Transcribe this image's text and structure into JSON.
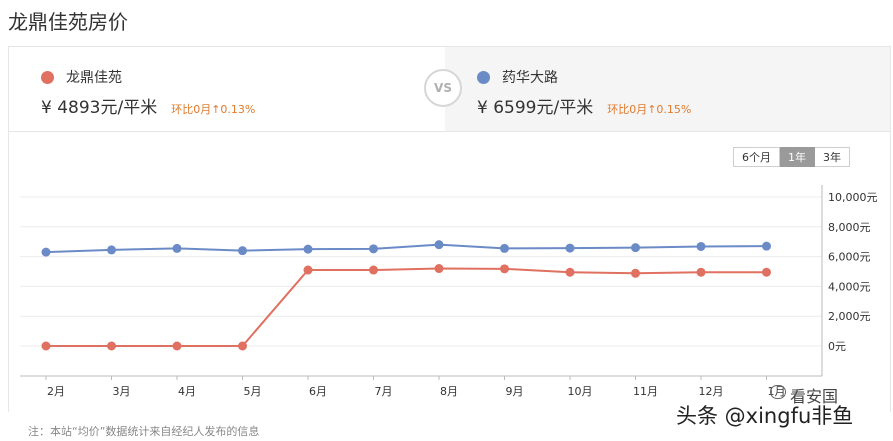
{
  "page_title": "龙鼎佳苑房价",
  "compare": {
    "left": {
      "name": "龙鼎佳苑",
      "price": "¥ 4893元/平米",
      "change": "环比0月↑0.13%",
      "color": "#e07060"
    },
    "vs": "VS",
    "right": {
      "name": "药华大路",
      "price": "¥ 6599元/平米",
      "change": "环比0月↑0.15%",
      "color": "#6b8bc7"
    }
  },
  "range_tabs": [
    {
      "label": "6个月",
      "active": false
    },
    {
      "label": "1年",
      "active": true
    },
    {
      "label": "3年",
      "active": false
    }
  ],
  "chart_data": {
    "type": "line",
    "categories": [
      "2月",
      "3月",
      "4月",
      "5月",
      "6月",
      "7月",
      "8月",
      "9月",
      "10月",
      "11月",
      "12月",
      "1月"
    ],
    "yticks": [
      "0元",
      "2,000元",
      "4,000元",
      "6,000元",
      "8,000元",
      "10,000元"
    ],
    "ylim": [
      0,
      10000
    ],
    "grid": true,
    "series": [
      {
        "name": "龙鼎佳苑",
        "color": "#e07060",
        "values": [
          0,
          0,
          0,
          0,
          5100,
          5100,
          5200,
          5180,
          4950,
          4880,
          4950,
          4950
        ]
      },
      {
        "name": "药华大路",
        "color": "#6b8bc7",
        "values": [
          6300,
          6450,
          6550,
          6400,
          6500,
          6520,
          6800,
          6550,
          6570,
          6600,
          6680,
          6700
        ]
      }
    ]
  },
  "footnote": "注：本站“均价”数据统计来自经纪人发布的信息",
  "watermark": {
    "text": "头条 @xingfu非鱼",
    "brand": "看安国"
  }
}
